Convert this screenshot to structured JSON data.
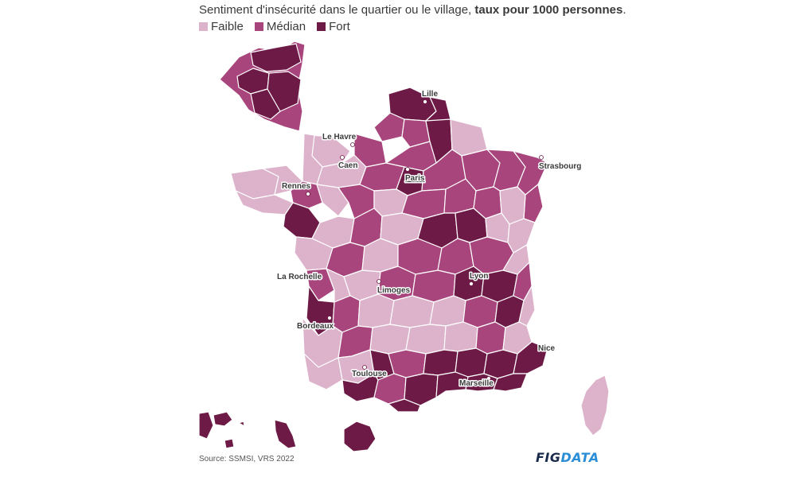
{
  "title": {
    "part1": "Sentiment d'insécurité dans le quartier ou le village, ",
    "bold": "taux pour 1000 personnes",
    "part2": "."
  },
  "legend": [
    {
      "label": "Faible",
      "color": "#ddb3cc"
    },
    {
      "label": "Médian",
      "color": "#a8457d"
    },
    {
      "label": "Fort",
      "color": "#6e1a47"
    }
  ],
  "cities": {
    "lille": "Lille",
    "le_havre": "Le Havre",
    "caen": "Caen",
    "paris": "Paris",
    "strasbourg": "Strasbourg",
    "rennes": "Rennes",
    "la_rochelle": "La Rochelle",
    "limoges": "Limoges",
    "lyon": "Lyon",
    "bordeaux": "Bordeaux",
    "nice": "Nice",
    "toulouse": "Toulouse",
    "marseille": "Marseille"
  },
  "source": "Source: SSMSI, VRS 2022",
  "logo": {
    "part1": "FIG",
    "part2": "DATA"
  }
}
